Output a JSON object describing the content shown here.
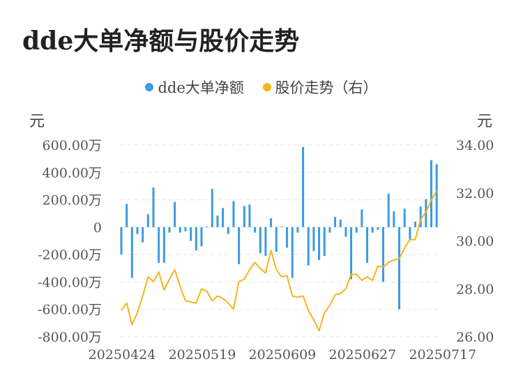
{
  "chart_data": {
    "type": "bar+line",
    "title": "dde大单净额与股价走势",
    "legend": [
      {
        "name": "dde大单净额",
        "color": "#3b9be3"
      },
      {
        "name": "股价走势（右）",
        "color": "#f5b41d"
      }
    ],
    "left_axis_unit": "元",
    "right_axis_unit": "元",
    "left_ticks": [
      "600.00万",
      "400.00万",
      "200.00万",
      "0",
      "-200.00万",
      "-400.00万",
      "-600.00万",
      "-800.00万"
    ],
    "left_tick_values": [
      600,
      400,
      200,
      0,
      -200,
      -400,
      -600,
      -800
    ],
    "right_ticks": [
      "34.00",
      "32.00",
      "30.00",
      "28.00",
      "26.00"
    ],
    "right_tick_values": [
      34,
      32,
      30,
      28,
      26
    ],
    "ylim_left": [
      -800,
      600
    ],
    "ylim_right": [
      26,
      34
    ],
    "x_tick_labels": [
      "20250424",
      "20250519",
      "20250609",
      "20250627",
      "20250717"
    ],
    "x_tick_indices": [
      0,
      15,
      30,
      45,
      60
    ],
    "series": [
      {
        "name": "dde大单净额",
        "type": "bar",
        "color": "#3b9be3",
        "unit": "万",
        "values": [
          -200,
          170,
          -370,
          -50,
          -110,
          95,
          290,
          -260,
          -260,
          -40,
          185,
          -40,
          -30,
          -100,
          -170,
          -140,
          5,
          280,
          85,
          140,
          -50,
          190,
          -270,
          155,
          165,
          -40,
          -190,
          -210,
          65,
          -180,
          5,
          -150,
          -370,
          -40,
          585,
          -280,
          -175,
          -240,
          -210,
          -40,
          75,
          55,
          -70,
          -380,
          -40,
          130,
          -260,
          -40,
          -20,
          -400,
          245,
          115,
          -600,
          135,
          -95,
          40,
          150,
          205,
          490,
          460
        ]
      },
      {
        "name": "股价走势（右）",
        "type": "line",
        "color": "#f5b41d",
        "values": [
          27.1,
          27.4,
          26.5,
          27.0,
          27.7,
          28.5,
          28.3,
          28.7,
          27.95,
          28.4,
          28.8,
          28.1,
          27.5,
          27.45,
          27.4,
          28.0,
          27.9,
          27.5,
          27.7,
          27.6,
          27.4,
          27.15,
          28.3,
          28.4,
          28.8,
          29.1,
          28.85,
          28.65,
          29.6,
          28.8,
          28.5,
          28.55,
          27.7,
          27.65,
          27.7,
          27.1,
          26.7,
          26.25,
          27.0,
          27.3,
          27.75,
          27.8,
          28.0,
          28.6,
          28.6,
          28.35,
          28.5,
          28.35,
          28.95,
          28.9,
          29.1,
          29.2,
          29.25,
          29.7,
          30.05,
          30.05,
          30.9,
          31.2,
          31.7,
          32.1
        ]
      }
    ]
  }
}
